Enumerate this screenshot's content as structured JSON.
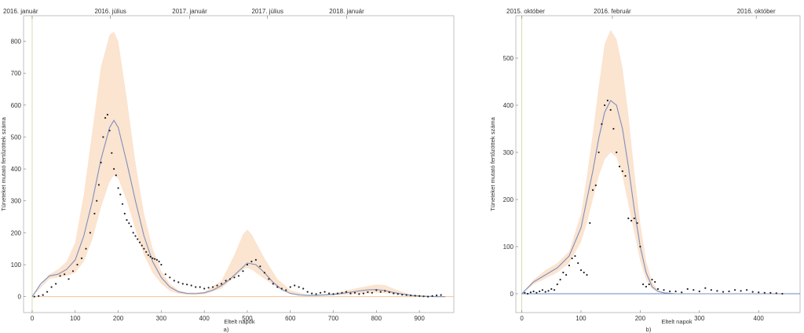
{
  "chart_data": [
    {
      "type": "line",
      "panel_caption": "a)",
      "xlabel": "Eltelt napok",
      "ylabel": "Tüneteket mutató fertőzöttek száma",
      "xlim": [
        -20,
        980
      ],
      "ylim": [
        -50,
        880
      ],
      "x_ticks": [
        0,
        100,
        200,
        300,
        400,
        500,
        600,
        700,
        800,
        900
      ],
      "y_ticks": [
        0,
        100,
        200,
        300,
        400,
        500,
        600,
        700,
        800
      ],
      "top_dates": [
        {
          "label": "2016. január",
          "x": 0
        },
        {
          "label": "2016. július",
          "x": 182
        },
        {
          "label": "2017. január",
          "x": 366
        },
        {
          "label": "2017. július",
          "x": 547
        },
        {
          "label": "2018. január",
          "x": 731
        }
      ],
      "colors": {
        "model": "#7d8fbc",
        "band": "#fbe4d0",
        "points": "#222222",
        "vline": "#c9d99a",
        "hline": "#f2b98c"
      },
      "model_curve": {
        "x": [
          0,
          20,
          40,
          60,
          80,
          100,
          120,
          140,
          160,
          180,
          190,
          200,
          220,
          240,
          260,
          280,
          300,
          320,
          340,
          360,
          380,
          400,
          420,
          440,
          460,
          480,
          500,
          520,
          540,
          560,
          580,
          600,
          620,
          640,
          660,
          680,
          700,
          720,
          740,
          760,
          780,
          800,
          820,
          840,
          860,
          880,
          900,
          920,
          940,
          960
        ],
        "y": [
          0,
          40,
          65,
          70,
          85,
          115,
          190,
          300,
          430,
          530,
          552,
          530,
          420,
          300,
          190,
          110,
          60,
          30,
          15,
          10,
          9,
          12,
          20,
          35,
          55,
          80,
          105,
          100,
          75,
          45,
          22,
          10,
          5,
          4,
          4,
          5,
          7,
          10,
          14,
          18,
          21,
          22,
          19,
          13,
          8,
          4,
          2,
          1,
          0,
          0
        ]
      },
      "band_upper": {
        "x": [
          0,
          40,
          60,
          80,
          100,
          120,
          140,
          160,
          180,
          190,
          200,
          220,
          240,
          260,
          280,
          300,
          320,
          340,
          360,
          400,
          440,
          470,
          490,
          500,
          510,
          540,
          570,
          600,
          640,
          700,
          760,
          800,
          820,
          840,
          880,
          960
        ],
        "y": [
          0,
          70,
          85,
          110,
          170,
          320,
          520,
          720,
          820,
          830,
          800,
          620,
          420,
          260,
          150,
          80,
          40,
          20,
          12,
          15,
          50,
          130,
          195,
          210,
          195,
          120,
          55,
          20,
          6,
          10,
          28,
          38,
          36,
          25,
          6,
          0
        ]
      },
      "band_lower": {
        "x": [
          0,
          40,
          60,
          80,
          100,
          120,
          140,
          160,
          180,
          190,
          200,
          220,
          240,
          260,
          280,
          300,
          320,
          340,
          360,
          400,
          440,
          470,
          490,
          500,
          510,
          540,
          570,
          600,
          640,
          700,
          760,
          800,
          820,
          840,
          880,
          960
        ],
        "y": [
          0,
          55,
          60,
          65,
          75,
          110,
          180,
          280,
          360,
          380,
          370,
          300,
          210,
          130,
          75,
          40,
          18,
          9,
          6,
          7,
          25,
          60,
          85,
          90,
          85,
          55,
          28,
          10,
          3,
          4,
          8,
          12,
          11,
          8,
          2,
          0
        ]
      },
      "observed": {
        "x": [
          5,
          15,
          25,
          35,
          45,
          55,
          65,
          75,
          85,
          95,
          105,
          115,
          125,
          135,
          145,
          150,
          155,
          160,
          165,
          170,
          175,
          180,
          185,
          190,
          195,
          200,
          205,
          210,
          215,
          220,
          225,
          230,
          235,
          240,
          245,
          250,
          255,
          260,
          265,
          270,
          275,
          280,
          285,
          290,
          295,
          300,
          310,
          320,
          330,
          340,
          350,
          360,
          370,
          380,
          390,
          400,
          410,
          420,
          430,
          440,
          450,
          460,
          470,
          480,
          490,
          500,
          510,
          520,
          530,
          540,
          550,
          560,
          570,
          580,
          590,
          600,
          610,
          620,
          630,
          640,
          650,
          660,
          670,
          680,
          690,
          700,
          710,
          720,
          730,
          740,
          750,
          760,
          770,
          780,
          790,
          800,
          810,
          820,
          830,
          840,
          850,
          860,
          870,
          880,
          890,
          900,
          910,
          920,
          930,
          940,
          950
        ],
        "y": [
          0,
          2,
          5,
          15,
          30,
          40,
          65,
          70,
          55,
          80,
          100,
          120,
          150,
          200,
          260,
          300,
          350,
          420,
          500,
          560,
          570,
          520,
          450,
          400,
          380,
          340,
          320,
          290,
          260,
          240,
          230,
          220,
          200,
          190,
          180,
          170,
          160,
          150,
          140,
          130,
          125,
          120,
          118,
          115,
          110,
          100,
          70,
          60,
          50,
          45,
          40,
          38,
          35,
          30,
          30,
          25,
          28,
          30,
          35,
          40,
          50,
          55,
          60,
          65,
          80,
          100,
          110,
          115,
          95,
          75,
          55,
          40,
          30,
          25,
          20,
          30,
          35,
          30,
          25,
          15,
          10,
          8,
          12,
          15,
          10,
          8,
          10,
          12,
          15,
          10,
          12,
          8,
          10,
          14,
          12,
          20,
          15,
          18,
          14,
          10,
          8,
          6,
          5,
          4,
          3,
          2,
          1,
          0,
          2,
          4,
          5
        ]
      }
    },
    {
      "type": "line",
      "panel_caption": "b)",
      "xlabel": "Eltelt napok",
      "ylabel": "Tüneteket mutató fertőzöttek száma",
      "xlim": [
        -10,
        470
      ],
      "ylim": [
        -40,
        590
      ],
      "x_ticks": [
        0,
        100,
        200,
        300,
        400
      ],
      "y_ticks": [
        0,
        100,
        200,
        300,
        400,
        500
      ],
      "top_dates": [
        {
          "label": "2015. október",
          "x": 0
        },
        {
          "label": "2016. február",
          "x": 153
        },
        {
          "label": "2016. október",
          "x": 396
        }
      ],
      "colors": {
        "model": "#7d8fbc",
        "band": "#fbe4d0",
        "points": "#222222",
        "vline": "#c9d99a",
        "hline": "#3a5fb5"
      },
      "model_curve": {
        "x": [
          0,
          20,
          40,
          60,
          80,
          100,
          120,
          130,
          140,
          150,
          160,
          170,
          180,
          190,
          200,
          210,
          220,
          230,
          240,
          260,
          300,
          350,
          400,
          450
        ],
        "y": [
          0,
          25,
          40,
          55,
          80,
          140,
          260,
          330,
          385,
          410,
          400,
          350,
          270,
          180,
          100,
          45,
          15,
          5,
          2,
          0,
          0,
          0,
          0,
          0
        ]
      },
      "band_upper": {
        "x": [
          0,
          20,
          40,
          60,
          80,
          100,
          110,
          120,
          130,
          140,
          150,
          160,
          170,
          180,
          190,
          200,
          210,
          220,
          230,
          240,
          260,
          450
        ],
        "y": [
          0,
          30,
          50,
          65,
          90,
          170,
          250,
          340,
          440,
          530,
          560,
          540,
          480,
          380,
          260,
          150,
          70,
          25,
          8,
          3,
          0,
          0
        ]
      },
      "band_lower": {
        "x": [
          0,
          20,
          40,
          60,
          80,
          100,
          110,
          120,
          130,
          140,
          150,
          160,
          170,
          180,
          190,
          200,
          210,
          220,
          230,
          240,
          260,
          450
        ],
        "y": [
          0,
          20,
          32,
          45,
          65,
          110,
          150,
          200,
          250,
          285,
          300,
          290,
          250,
          190,
          130,
          70,
          30,
          10,
          3,
          1,
          0,
          0
        ]
      },
      "observed": {
        "x": [
          5,
          10,
          15,
          20,
          25,
          30,
          35,
          40,
          45,
          50,
          55,
          60,
          65,
          70,
          75,
          80,
          85,
          90,
          95,
          100,
          105,
          110,
          115,
          120,
          125,
          130,
          135,
          140,
          145,
          150,
          155,
          160,
          165,
          170,
          175,
          180,
          185,
          190,
          195,
          200,
          205,
          210,
          215,
          220,
          225,
          230,
          240,
          250,
          260,
          270,
          280,
          290,
          300,
          310,
          320,
          330,
          340,
          350,
          360,
          370,
          380,
          390,
          400,
          410,
          420,
          430,
          440
        ],
        "y": [
          2,
          0,
          3,
          5,
          2,
          5,
          8,
          4,
          6,
          10,
          8,
          20,
          30,
          45,
          40,
          60,
          75,
          80,
          65,
          50,
          45,
          40,
          150,
          220,
          230,
          300,
          360,
          400,
          410,
          390,
          350,
          300,
          270,
          260,
          250,
          160,
          155,
          160,
          150,
          100,
          20,
          15,
          20,
          30,
          25,
          10,
          8,
          5,
          5,
          3,
          10,
          8,
          5,
          12,
          8,
          6,
          4,
          5,
          8,
          6,
          8,
          4,
          3,
          2,
          2,
          1,
          0
        ]
      }
    }
  ]
}
